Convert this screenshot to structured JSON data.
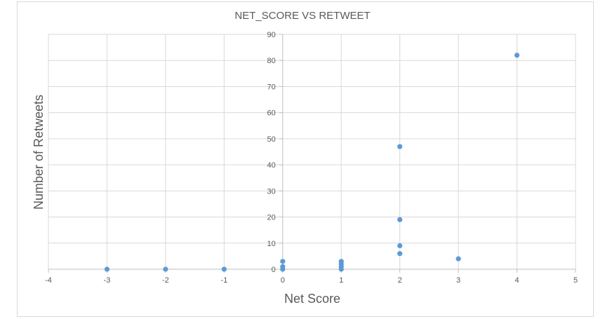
{
  "chart_data": {
    "type": "scatter",
    "title": "NET_SCORE  VS RETWEET",
    "xlabel": "Net Score",
    "ylabel": "Number of Retweets",
    "xlim": [
      -4,
      5
    ],
    "ylim": [
      0,
      90
    ],
    "x_ticks": [
      -4,
      -3,
      -2,
      -1,
      0,
      1,
      2,
      3,
      4,
      5
    ],
    "y_ticks": [
      0,
      10,
      20,
      30,
      40,
      50,
      60,
      70,
      80,
      90
    ],
    "grid": true,
    "legend": "none",
    "colors": {
      "point": "#5b9bd5",
      "grid": "#d9d9d9",
      "axis": "#bfbfbf",
      "text": "#595959"
    },
    "series": [
      {
        "points": [
          {
            "x": -3,
            "y": 0
          },
          {
            "x": -2,
            "y": 0
          },
          {
            "x": -1,
            "y": 0
          },
          {
            "x": 0,
            "y": 0
          },
          {
            "x": 0,
            "y": 1
          },
          {
            "x": 0,
            "y": 3
          },
          {
            "x": 1,
            "y": 0
          },
          {
            "x": 1,
            "y": 1
          },
          {
            "x": 1,
            "y": 2
          },
          {
            "x": 1,
            "y": 3
          },
          {
            "x": 2,
            "y": 6
          },
          {
            "x": 2,
            "y": 9
          },
          {
            "x": 2,
            "y": 19
          },
          {
            "x": 2,
            "y": 47
          },
          {
            "x": 3,
            "y": 4
          },
          {
            "x": 4,
            "y": 82
          }
        ]
      }
    ]
  }
}
